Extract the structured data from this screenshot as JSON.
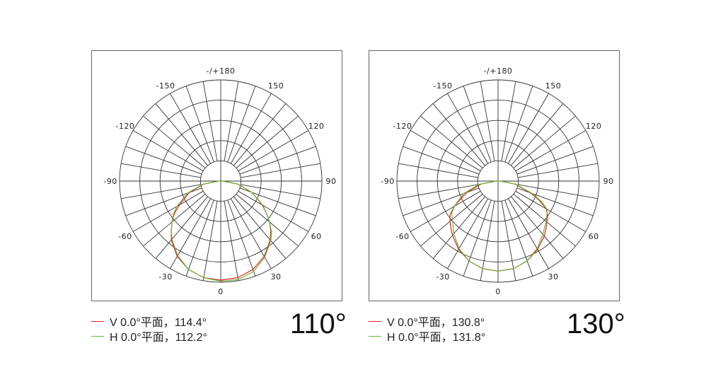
{
  "chart_data": [
    {
      "type": "polar",
      "angle_tick_labels": [
        "-/+180",
        "150",
        "120",
        "90",
        "60",
        "30",
        "0",
        "-30",
        "-60",
        "-90",
        "-120",
        "-150"
      ],
      "angle_ticks": [
        180,
        150,
        120,
        90,
        60,
        30,
        0,
        -30,
        -60,
        -90,
        -120,
        -150
      ],
      "radial_spokes_every_deg": 10,
      "rings": 5,
      "beam_angle_label": "110°",
      "series": [
        {
          "name": "V 0.0°平面，114.4°",
          "color": "#e0231c",
          "angles": [
            -90,
            -80,
            -70,
            -60,
            -55,
            -50,
            -45,
            -40,
            -30,
            -20,
            -10,
            0,
            10,
            20,
            30,
            40,
            45,
            50,
            55,
            60,
            70,
            80,
            90
          ],
          "values": [
            0.02,
            0.17,
            0.33,
            0.47,
            0.56,
            0.63,
            0.69,
            0.76,
            0.86,
            0.93,
            0.97,
            0.98,
            0.97,
            0.93,
            0.86,
            0.76,
            0.7,
            0.63,
            0.55,
            0.48,
            0.33,
            0.17,
            0.02
          ]
        },
        {
          "name": "H 0.0°平面，112.2°",
          "color": "#6ab43c",
          "angles": [
            -90,
            -80,
            -70,
            -60,
            -55,
            -50,
            -45,
            -40,
            -30,
            -20,
            -10,
            0,
            10,
            20,
            30,
            40,
            45,
            50,
            55,
            60,
            70,
            80,
            90
          ],
          "values": [
            0.02,
            0.18,
            0.35,
            0.5,
            0.57,
            0.63,
            0.69,
            0.75,
            0.85,
            0.93,
            0.97,
            0.99,
            0.99,
            0.95,
            0.87,
            0.77,
            0.71,
            0.63,
            0.55,
            0.47,
            0.33,
            0.17,
            0.02
          ]
        }
      ]
    },
    {
      "type": "polar",
      "angle_tick_labels": [
        "-/+180",
        "150",
        "120",
        "90",
        "60",
        "30",
        "0",
        "-30",
        "-60",
        "-90",
        "-120",
        "-150"
      ],
      "angle_ticks": [
        180,
        150,
        120,
        90,
        60,
        30,
        0,
        -30,
        -60,
        -90,
        -120,
        -150
      ],
      "radial_spokes_every_deg": 10,
      "rings": 5,
      "beam_angle_label": "130°",
      "series": [
        {
          "name": "V 0.0°平面，130.8°",
          "color": "#e0231c",
          "angles": [
            -90,
            -80,
            -70,
            -60,
            -55,
            -50,
            -45,
            -40,
            -30,
            -20,
            -10,
            0,
            10,
            20,
            30,
            40,
            45,
            50,
            55,
            60,
            65,
            70,
            80,
            90
          ],
          "values": [
            0.02,
            0.17,
            0.33,
            0.5,
            0.58,
            0.62,
            0.66,
            0.7,
            0.78,
            0.84,
            0.88,
            0.89,
            0.88,
            0.84,
            0.78,
            0.71,
            0.67,
            0.63,
            0.6,
            0.55,
            0.45,
            0.34,
            0.17,
            0.02
          ]
        },
        {
          "name": "H 0.0°平面，131.8°",
          "color": "#6ab43c",
          "angles": [
            -90,
            -80,
            -70,
            -60,
            -55,
            -50,
            -45,
            -40,
            -30,
            -20,
            -10,
            0,
            10,
            20,
            30,
            40,
            45,
            50,
            55,
            60,
            65,
            70,
            80,
            90
          ],
          "values": [
            0.02,
            0.19,
            0.36,
            0.5,
            0.56,
            0.59,
            0.63,
            0.68,
            0.77,
            0.84,
            0.88,
            0.89,
            0.88,
            0.84,
            0.77,
            0.69,
            0.65,
            0.62,
            0.59,
            0.56,
            0.47,
            0.36,
            0.18,
            0.02
          ]
        }
      ]
    }
  ]
}
